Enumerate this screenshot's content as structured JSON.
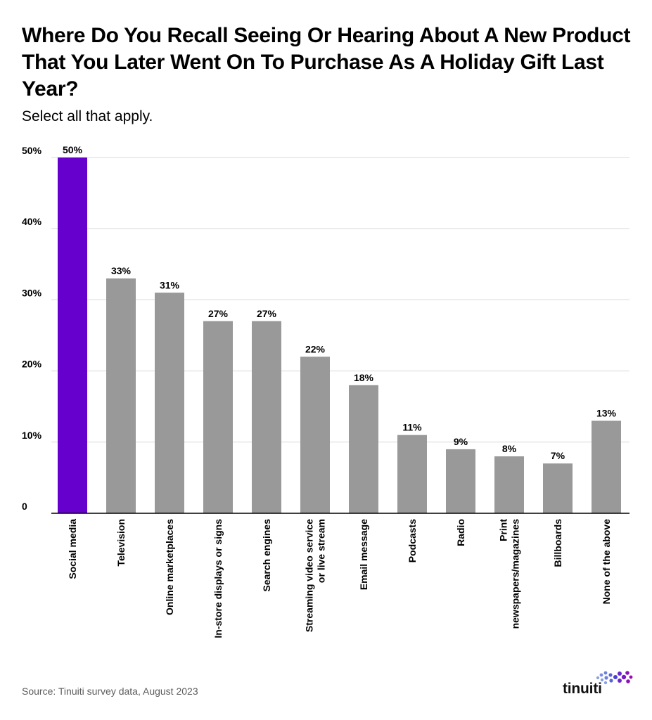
{
  "title": "Where Do You Recall Seeing Or Hearing About A New Product That You Later Went On To Purchase As A Holiday Gift Last Year?",
  "subtitle": "Select all that apply.",
  "source": "Source: Tinuiti survey data, August 2023",
  "brand": "tinuiti",
  "colors": {
    "highlight": "#6600cc",
    "bar": "#999999",
    "grid": "#d9d9d9",
    "axis": "#000000"
  },
  "chart_data": {
    "type": "bar",
    "title": "Where Do You Recall Seeing Or Hearing About A New Product That You Later Went On To Purchase As A Holiday Gift Last Year?",
    "subtitle": "Select all that apply.",
    "categories": [
      [
        "Social media"
      ],
      [
        "Television"
      ],
      [
        "Online marketplaces"
      ],
      [
        "In-store displays or signs"
      ],
      [
        "Search engines"
      ],
      [
        "Streaming video service",
        "or live stream"
      ],
      [
        "Email message"
      ],
      [
        "Podcasts"
      ],
      [
        "Radio"
      ],
      [
        "Print",
        "newspapers/magazines"
      ],
      [
        "Billboards"
      ],
      [
        "None of the above"
      ]
    ],
    "values": [
      50,
      33,
      31,
      27,
      27,
      22,
      18,
      11,
      9,
      8,
      7,
      13
    ],
    "value_labels": [
      "50%",
      "33%",
      "31%",
      "27%",
      "27%",
      "22%",
      "18%",
      "11%",
      "9%",
      "8%",
      "7%",
      "13%"
    ],
    "highlight_index": 0,
    "ylim": [
      0,
      50
    ],
    "yticks": [
      0,
      10,
      20,
      30,
      40,
      50
    ],
    "ytick_labels": [
      "0",
      "10%",
      "20%",
      "30%",
      "40%",
      "50%"
    ],
    "xlabel": "",
    "ylabel": "",
    "grid": true,
    "legend": "none"
  }
}
